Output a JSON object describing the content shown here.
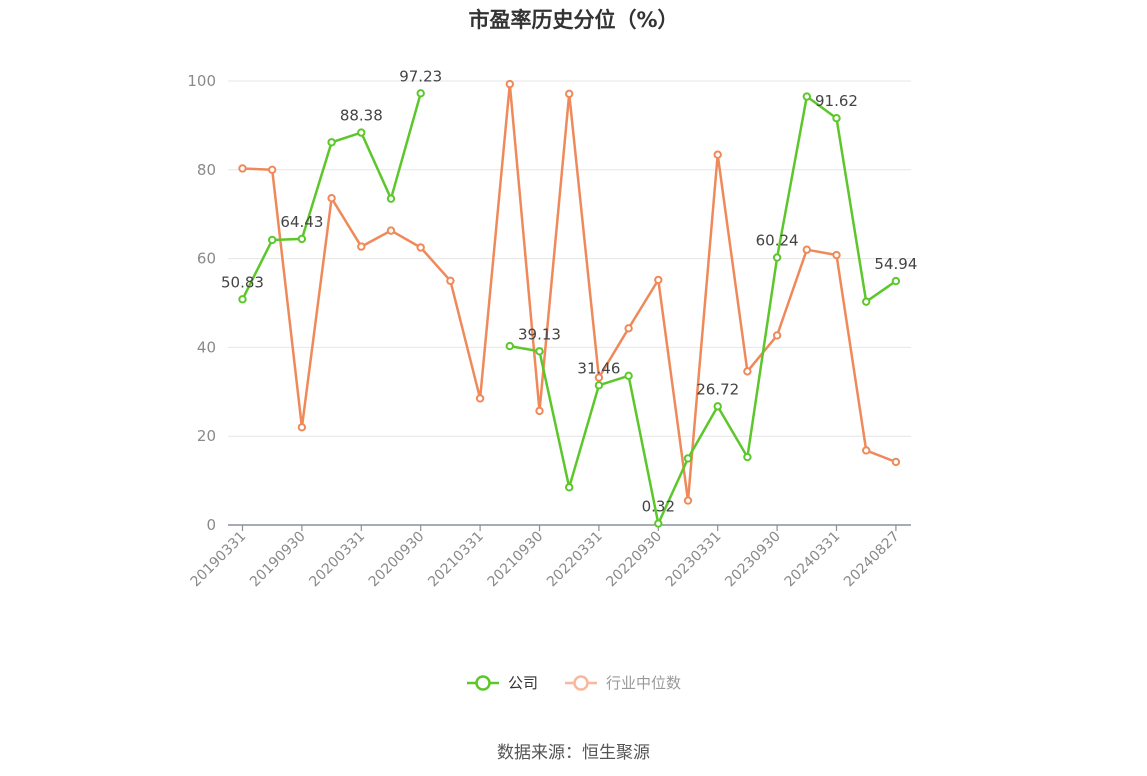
{
  "title": "市盈率历史分位（%）",
  "source": "数据来源：恒生聚源",
  "colors": {
    "company": "#5cc72b",
    "industry": "#f0895a",
    "industry_legend": "#f7b89c",
    "grid": "#e6e6e6",
    "axis": "#8a8f9c"
  },
  "legend": [
    {
      "name": "公司",
      "color": "#5cc72b",
      "icon": "circle-line-icon"
    },
    {
      "name": "行业中位数",
      "color": "#f7b89c",
      "icon": "circle-line-icon"
    }
  ],
  "chart_data": {
    "type": "line",
    "title": "市盈率历史分位（%）",
    "ylim": [
      0,
      100
    ],
    "yticks": [
      0,
      20,
      40,
      60,
      80,
      100
    ],
    "grid": true,
    "legend_position": "bottom",
    "x": [
      "20190331",
      "20190630",
      "20190930",
      "20191231",
      "20200331",
      "20200630",
      "20200930",
      "20201231",
      "20210331",
      "20210630",
      "20210930",
      "20211231",
      "20220331",
      "20220630",
      "20220930",
      "20221231",
      "20230331",
      "20230630",
      "20230930",
      "20231231",
      "20240331",
      "20240630",
      "20240827"
    ],
    "x_tick_labels": [
      "20190331",
      "20190930",
      "20200331",
      "20200930",
      "20210331",
      "20210930",
      "20220331",
      "20220930",
      "20230331",
      "20230930",
      "20240331",
      "20240827"
    ],
    "x_tick_indices": [
      0,
      2,
      4,
      6,
      8,
      10,
      12,
      14,
      16,
      18,
      20,
      22
    ],
    "series": [
      {
        "name": "公司",
        "color": "#5cc72b",
        "values": [
          50.83,
          64.2,
          64.43,
          86.2,
          88.38,
          73.5,
          97.23,
          null,
          null,
          40.3,
          39.13,
          8.5,
          31.46,
          33.6,
          0.32,
          15.0,
          26.72,
          15.3,
          60.24,
          96.5,
          91.62,
          50.3,
          54.94
        ],
        "labels": [
          "50.83",
          null,
          "64.43",
          null,
          "88.38",
          null,
          "97.23",
          null,
          null,
          null,
          "39.13",
          null,
          "31.46",
          null,
          "0.32",
          null,
          "26.72",
          null,
          "60.24",
          null,
          "91.62",
          null,
          "54.94"
        ]
      },
      {
        "name": "行业中位数",
        "color": "#f0895a",
        "values": [
          80.3,
          80.0,
          22.0,
          73.6,
          62.7,
          66.3,
          62.5,
          55.0,
          28.5,
          99.3,
          25.7,
          97.1,
          33.2,
          44.3,
          55.2,
          5.5,
          83.4,
          34.6,
          42.7,
          62.0,
          60.8,
          16.8,
          14.2
        ]
      }
    ]
  }
}
